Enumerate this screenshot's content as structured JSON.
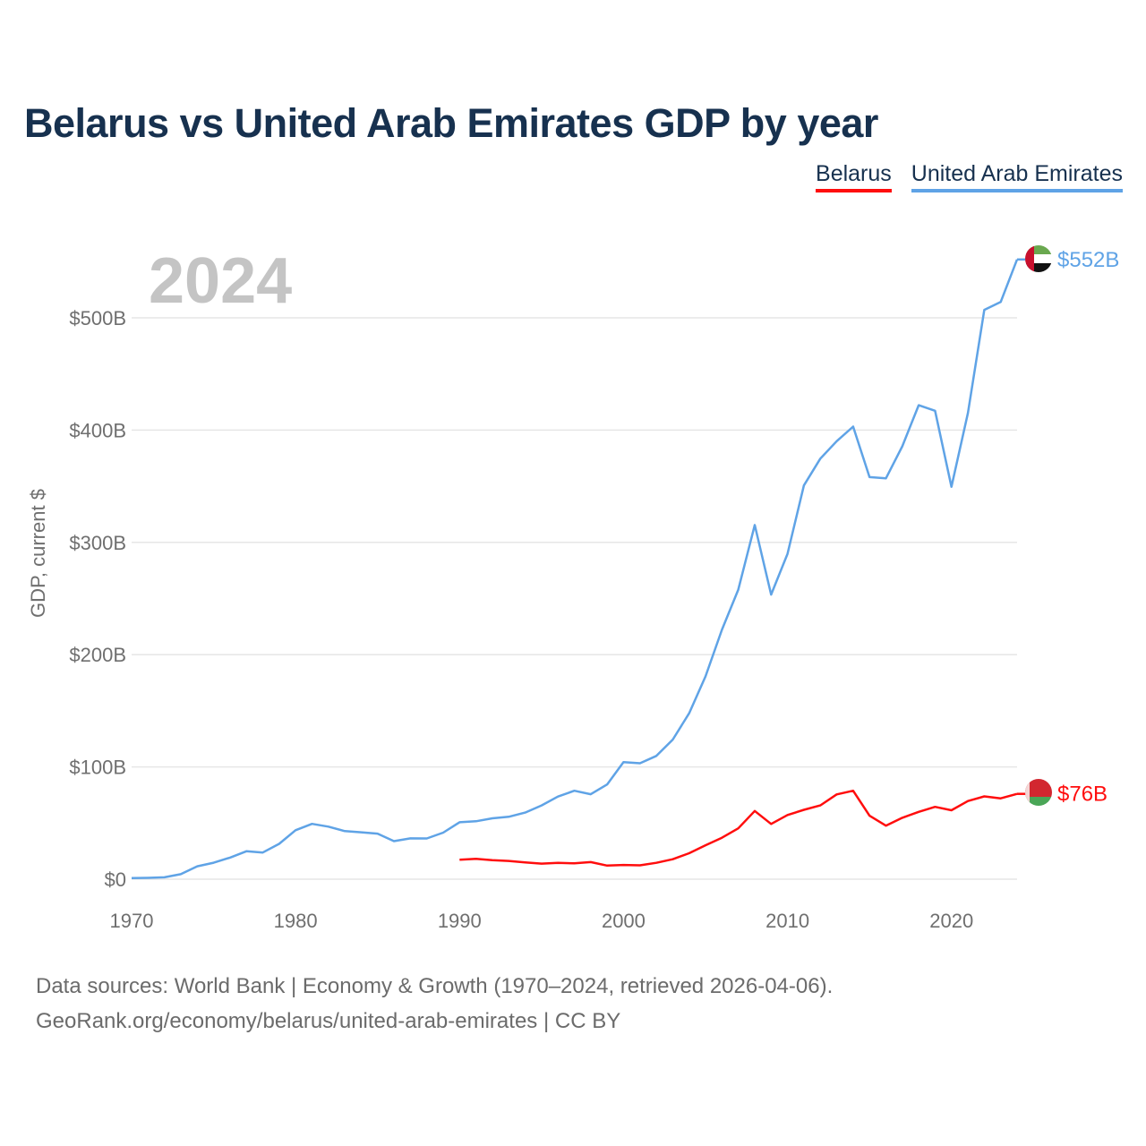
{
  "title": "Belarus vs United Arab Emirates GDP by year",
  "big_year": "2024",
  "legend": [
    {
      "name": "Belarus",
      "color": "#ff0d0d"
    },
    {
      "name": "United Arab Emirates",
      "color": "#5fa3e6"
    }
  ],
  "footer": {
    "line1": "Data sources: World Bank | Economy & Growth (1970–2024, retrieved 2026-04-06).",
    "line2": "GeoRank.org/economy/belarus/united-arab-emirates | CC BY"
  },
  "colors": {
    "belarus": "#ff0d0d",
    "uae": "#5fa3e6",
    "grid": "#e6e6e6",
    "title": "#17314f"
  },
  "chart_data": {
    "type": "line",
    "title": "Belarus vs United Arab Emirates GDP by year",
    "xlabel": "",
    "ylabel": "GDP, current $",
    "xlim": [
      1970,
      2024
    ],
    "ylim": [
      0,
      500
    ],
    "x_ticks": [
      1970,
      1980,
      1990,
      2000,
      2010,
      2020
    ],
    "y_ticks": [
      {
        "value": 0,
        "label": "$0"
      },
      {
        "value": 100,
        "label": "$100B"
      },
      {
        "value": 200,
        "label": "$200B"
      },
      {
        "value": 300,
        "label": "$300B"
      },
      {
        "value": 400,
        "label": "$400B"
      },
      {
        "value": 500,
        "label": "$500B"
      }
    ],
    "units": "billions of current US$",
    "series": [
      {
        "name": "United Arab Emirates",
        "color": "#5fa3e6",
        "end_label": "$552B",
        "x": [
          1970,
          1971,
          1972,
          1973,
          1974,
          1975,
          1976,
          1977,
          1978,
          1979,
          1980,
          1981,
          1982,
          1983,
          1984,
          1985,
          1986,
          1987,
          1988,
          1989,
          1990,
          1991,
          1992,
          1993,
          1994,
          1995,
          1996,
          1997,
          1998,
          1999,
          2000,
          2001,
          2002,
          2003,
          2004,
          2005,
          2006,
          2007,
          2008,
          2009,
          2010,
          2011,
          2012,
          2013,
          2014,
          2015,
          2016,
          2017,
          2018,
          2019,
          2020,
          2021,
          2022,
          2023,
          2024
        ],
        "values": [
          1,
          1.2,
          1.7,
          4.5,
          11.5,
          14.7,
          19.2,
          24.9,
          23.8,
          31.5,
          43.6,
          49.3,
          46.8,
          42.8,
          41.8,
          40.6,
          33.9,
          36.4,
          36.3,
          41.5,
          50.7,
          51.6,
          54.2,
          55.6,
          59.3,
          65.7,
          73.6,
          78.8,
          75.7,
          84.4,
          104.3,
          103.3,
          109.8,
          124.3,
          147.8,
          180.6,
          222.1,
          257.9,
          315.5,
          253.5,
          289.8,
          350.7,
          374.6,
          390.1,
          403.1,
          358.1,
          357.0,
          385.6,
          422.2,
          417.2,
          349.5,
          415.2,
          507.1,
          514.1,
          552
        ]
      },
      {
        "name": "Belarus",
        "color": "#ff0d0d",
        "end_label": "$76B",
        "x": [
          1990,
          1991,
          1992,
          1993,
          1994,
          1995,
          1996,
          1997,
          1998,
          1999,
          2000,
          2001,
          2002,
          2003,
          2004,
          2005,
          2006,
          2007,
          2008,
          2009,
          2010,
          2011,
          2012,
          2013,
          2014,
          2015,
          2016,
          2017,
          2018,
          2019,
          2020,
          2021,
          2022,
          2023,
          2024
        ],
        "values": [
          17.4,
          18.1,
          17.0,
          16.3,
          15.0,
          13.9,
          14.6,
          14.1,
          15.2,
          12.1,
          12.7,
          12.4,
          14.6,
          17.8,
          23.1,
          30.2,
          36.9,
          45.3,
          60.8,
          49.2,
          57.2,
          61.8,
          65.7,
          75.5,
          78.8,
          56.5,
          47.7,
          54.7,
          60.0,
          64.4,
          61.4,
          69.6,
          73.8,
          72.0,
          76
        ]
      }
    ]
  }
}
